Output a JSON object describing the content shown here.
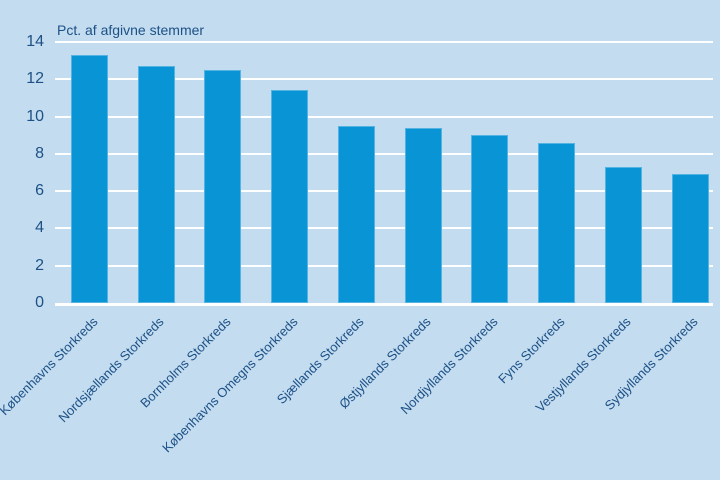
{
  "page": {
    "background_color": "#c3dcf0"
  },
  "chart_data": {
    "type": "bar",
    "title": "Pct. af afgivne stemmer",
    "categories": [
      "Københavns Storkreds",
      "Nordsjællands Storkreds",
      "Bornholms Storkreds",
      "Københavns Omegns Storkreds",
      "Sjællands Storkreds",
      "Østjyllands Storkreds",
      "Nordjyllands Storkreds",
      "Fyns Storkreds",
      "Vestjyllands Storkreds",
      "Sydjyllands Storkreds"
    ],
    "values": [
      13.3,
      12.7,
      12.5,
      11.4,
      9.5,
      9.4,
      9.0,
      8.6,
      7.3,
      6.9
    ],
    "xlabel": "",
    "ylabel": "Pct. af afgivne stemmer",
    "ylim": [
      0,
      14
    ],
    "yticks": [
      0,
      2,
      4,
      6,
      8,
      10,
      12,
      14
    ],
    "grid": true,
    "gridline_color": "#ffffff",
    "legend": "none",
    "bar_color": "#0994d6",
    "background_color": "#c3dcf0",
    "text_color": "#1d5186"
  }
}
